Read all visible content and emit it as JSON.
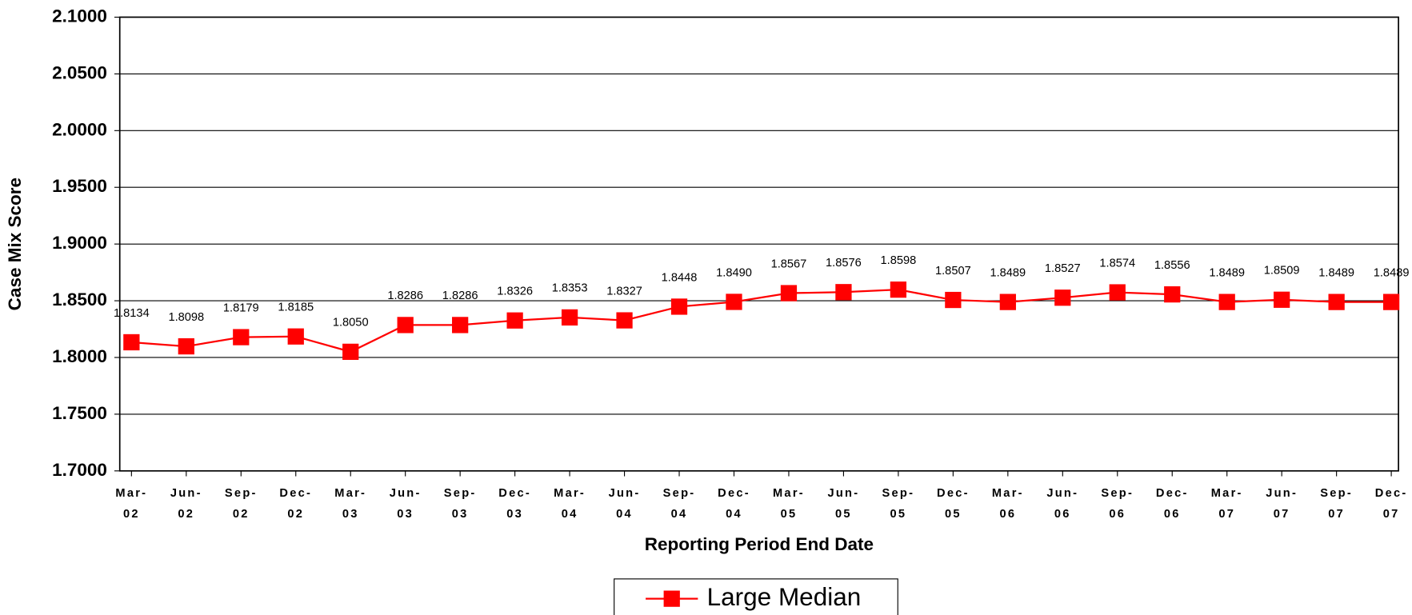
{
  "chart_data": {
    "type": "line",
    "x_label": "Reporting Period End Date",
    "y_label": "Case Mix Score",
    "categories": [
      "Mar-02",
      "Jun-02",
      "Sep-02",
      "Dec-02",
      "Mar-03",
      "Jun-03",
      "Sep-03",
      "Dec-03",
      "Mar-04",
      "Jun-04",
      "Sep-04",
      "Dec-04",
      "Mar-05",
      "Jun-05",
      "Sep-05",
      "Dec-05",
      "Mar-06",
      "Jun-06",
      "Sep-06",
      "Dec-06",
      "Mar-07",
      "Jun-07",
      "Sep-07",
      "Dec-07"
    ],
    "series": [
      {
        "name": "Large Median",
        "color": "#ff0000",
        "values": [
          1.8134,
          1.8098,
          1.8179,
          1.8185,
          1.805,
          1.8286,
          1.8286,
          1.8326,
          1.8353,
          1.8327,
          1.8448,
          1.849,
          1.8567,
          1.8576,
          1.8598,
          1.8507,
          1.8489,
          1.8527,
          1.8574,
          1.8556,
          1.8489,
          1.8509,
          1.8489,
          1.8489
        ],
        "value_labels": [
          "1.8134",
          "1.8098",
          "1.8179",
          "1.8185",
          "1.8050",
          "1.8286",
          "1.8286",
          "1.8326",
          "1.8353",
          "1.8327",
          "1.8448",
          "1.8490",
          "1.8567",
          "1.8576",
          "1.8598",
          "1.8507",
          "1.8489",
          "1.8527",
          "1.8574",
          "1.8556",
          "1.8489",
          "1.8509",
          "1.8489",
          "1.8489"
        ]
      }
    ],
    "ylim": [
      1.7,
      2.1
    ],
    "yticks": [
      {
        "value": 1.7,
        "label": "1.7000"
      },
      {
        "value": 1.75,
        "label": "1.7500"
      },
      {
        "value": 1.8,
        "label": "1.8000"
      },
      {
        "value": 1.85,
        "label": "1.8500"
      },
      {
        "value": 1.9,
        "label": "1.9000"
      },
      {
        "value": 1.95,
        "label": "1.9500"
      },
      {
        "value": 2.0,
        "label": "2.0000"
      },
      {
        "value": 2.05,
        "label": "2.0500"
      },
      {
        "value": 2.1,
        "label": "2.1000"
      }
    ],
    "grid": true,
    "legend": "bottom"
  }
}
